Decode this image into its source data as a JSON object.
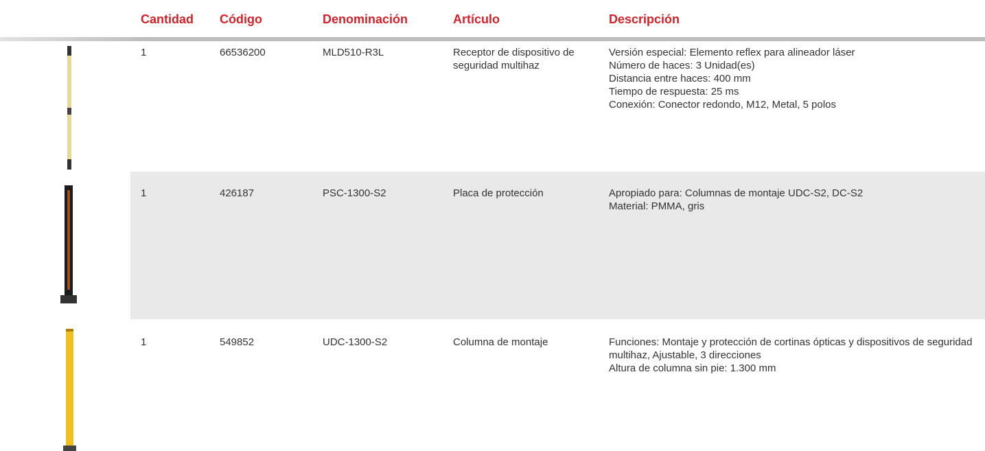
{
  "table": {
    "headers": [
      "Cantidad",
      "Código",
      "Denominación",
      "Artículo",
      "Descripción"
    ],
    "rows": [
      [
        "1",
        "66536200",
        "MLD510-R3L",
        "Receptor de dispositivo de seguridad multihaz",
        [
          "Versión especial: Elemento reflex para alineador láser",
          "Número de haces: 3 Unidad(es)",
          "Distancia entre haces: 400 mm",
          "Tiempo de respuesta: 25 ms",
          "Conexión: Conector redondo, M12, Metal, 5 polos"
        ]
      ],
      [
        "1",
        "426187",
        "PSC-1300-S2",
        "Placa de protección",
        [
          "Apropiado para: Columnas de montaje UDC-S2, DC-S2",
          "Material: PMMA, gris"
        ]
      ],
      [
        "1",
        "549852",
        "UDC-1300-S2",
        "Columna de montaje",
        [
          "Funciones: Montaje y protección de cortinas ópticas y dispositivos de seguridad multihaz, Ajustable, 3 direcciones",
          "Altura de columna sin pie: 1.300 mm"
        ]
      ]
    ]
  }
}
